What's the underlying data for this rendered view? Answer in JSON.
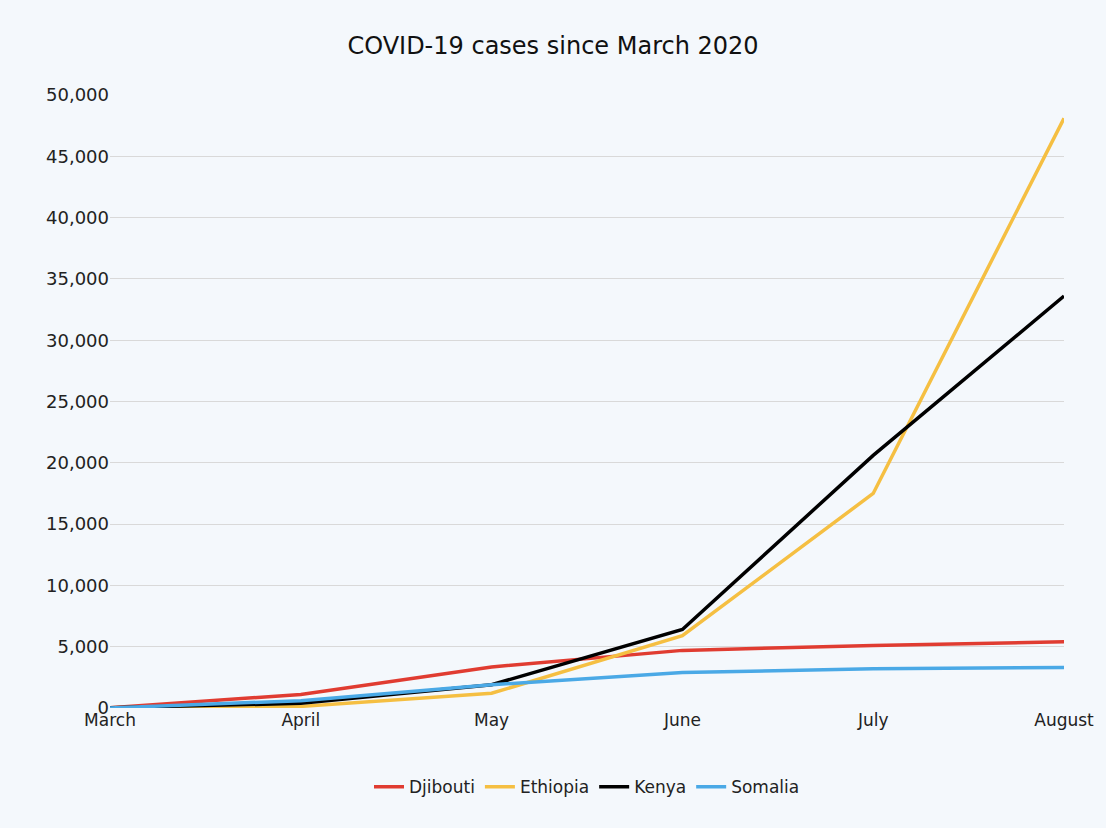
{
  "chart_data": {
    "type": "line",
    "title": "COVID-19 cases since March 2020",
    "categories": [
      "March",
      "April",
      "May",
      "June",
      "July",
      "August"
    ],
    "series": [
      {
        "name": "Djibouti",
        "color": "#e03c31",
        "values": [
          30,
          1100,
          3350,
          4700,
          5100,
          5400
        ]
      },
      {
        "name": "Ethiopia",
        "color": "#f5bf42",
        "values": [
          20,
          130,
          1200,
          5900,
          17500,
          48100
        ]
      },
      {
        "name": "Kenya",
        "color": "#000000",
        "values": [
          30,
          380,
          1900,
          6400,
          20600,
          33600
        ]
      },
      {
        "name": "Somalia",
        "color": "#4aa9e6",
        "values": [
          5,
          600,
          1900,
          2900,
          3200,
          3300
        ]
      }
    ],
    "ylim": [
      0,
      50000
    ],
    "yticks": [
      0,
      {
        "value": 5000,
        "label": "5,000"
      },
      {
        "value": 10000,
        "label": "10,000"
      },
      {
        "value": 15000,
        "label": "15,000"
      },
      {
        "value": 20000,
        "label": "20,000"
      },
      {
        "value": 25000,
        "label": "25,000"
      },
      {
        "value": 30000,
        "label": "30,000"
      },
      {
        "value": 35000,
        "label": "35,000"
      },
      {
        "value": 40000,
        "label": "40,000"
      },
      {
        "value": 45000,
        "label": "45,000"
      },
      {
        "value": 50000,
        "label": "50,000"
      }
    ],
    "grid": true,
    "legend": "bottom"
  }
}
